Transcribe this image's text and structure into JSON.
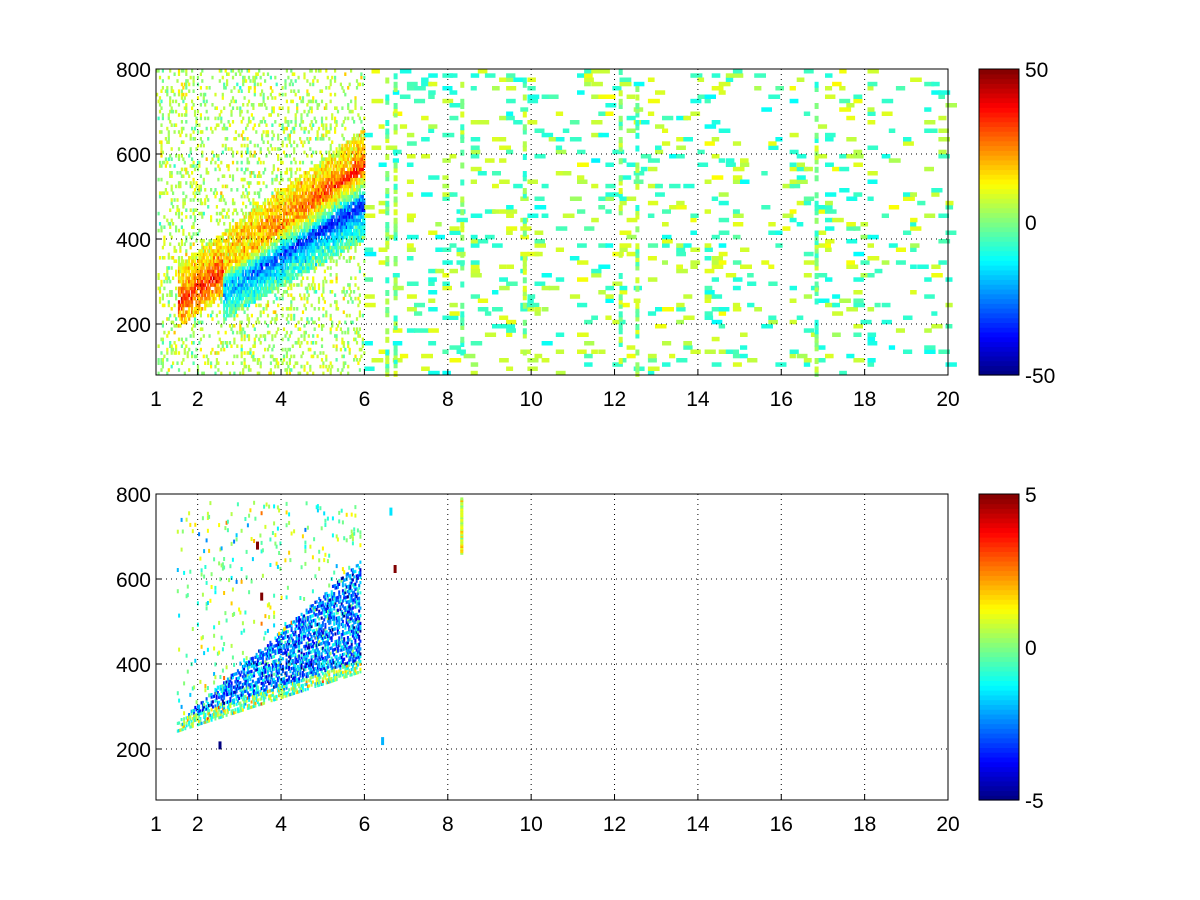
{
  "figure": {
    "background": "#ffffff"
  },
  "colormap": "jet",
  "chart_data": [
    {
      "type": "heatmap",
      "title": "",
      "xlabel": "",
      "ylabel": "",
      "xlim": [
        1,
        20
      ],
      "ylim": [
        80,
        800
      ],
      "xticks": [
        1,
        2,
        4,
        6,
        8,
        10,
        12,
        14,
        16,
        18,
        20
      ],
      "yticks": [
        200,
        400,
        600,
        800
      ],
      "grid": true,
      "colorbar": {
        "clim": [
          -50,
          50
        ],
        "ticks": [
          -50,
          0,
          50
        ],
        "colormap": "jet"
      },
      "features": {
        "ridge": {
          "x_start": 1.5,
          "x_end": 5.9,
          "y_start": 245,
          "y_end": 560,
          "value": 30
        },
        "trough": {
          "x_start": 2.6,
          "x_end": 5.9,
          "y_start": 285,
          "y_end": 470,
          "value": -40
        },
        "dense_region_x": [
          1,
          6
        ],
        "sparse_region_x": [
          6,
          20
        ],
        "stripe_x": [
          6.5,
          6.7,
          8.3,
          9.8,
          12.1,
          12.5,
          16.8
        ]
      }
    },
    {
      "type": "heatmap",
      "title": "",
      "xlabel": "",
      "ylabel": "",
      "xlim": [
        1,
        20
      ],
      "ylim": [
        80,
        800
      ],
      "xticks": [
        1,
        2,
        4,
        6,
        8,
        10,
        12,
        14,
        16,
        18,
        20
      ],
      "yticks": [
        200,
        400,
        600,
        800
      ],
      "grid": true,
      "colorbar": {
        "clim": [
          -5,
          5
        ],
        "ticks": [
          -5,
          0,
          5
        ],
        "colormap": "jet"
      },
      "features": {
        "band": {
          "x_start": 1.5,
          "x_end": 5.9,
          "y_start": 240,
          "y_end": 520,
          "value": -2.5
        },
        "stripe": {
          "x": 8.3,
          "y_from": 660,
          "y_to": 790,
          "value": 1
        },
        "isolated_points": [
          {
            "x": 6.6,
            "y": 760,
            "value": -1.5
          },
          {
            "x": 6.7,
            "y": 625,
            "value": 5
          },
          {
            "x": 6.4,
            "y": 220,
            "value": -2
          },
          {
            "x": 3.5,
            "y": 560,
            "value": 5
          },
          {
            "x": 3.4,
            "y": 680,
            "value": 5
          },
          {
            "x": 2.5,
            "y": 210,
            "value": -5
          }
        ]
      }
    }
  ]
}
